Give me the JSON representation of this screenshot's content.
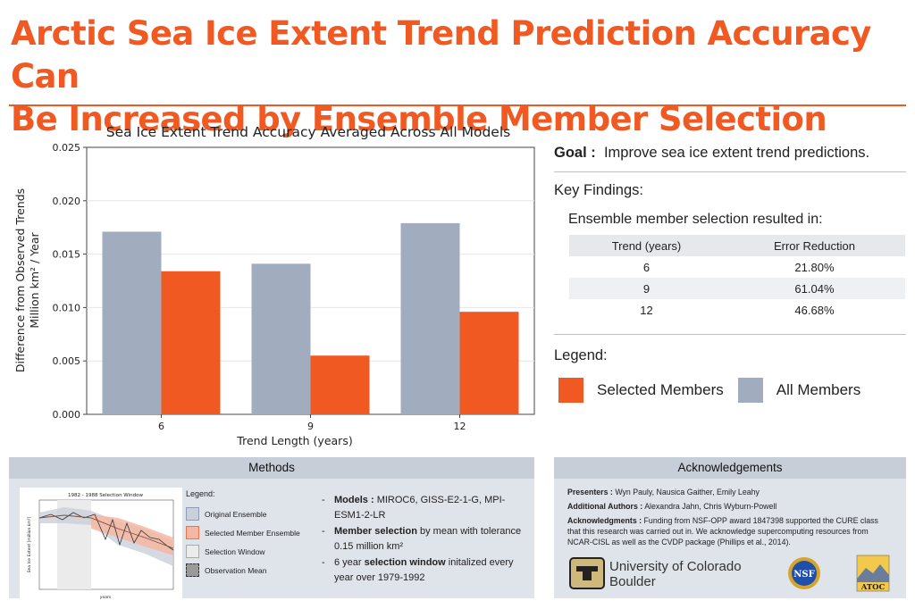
{
  "title_line1": "Arctic Sea Ice Extent Trend Prediction Accuracy Can",
  "title_line2": "Be Increased by Ensemble Member Selection",
  "colors": {
    "accent": "#f05a22",
    "selected_members": "#f05a22",
    "all_members": "#a1adbf",
    "panel_bg": "#dfe3ea",
    "panel_head": "#c8ced8"
  },
  "chart_data": {
    "type": "bar",
    "title": "Sea Ice Extent Trend Accuracy Averaged Across All Models",
    "xlabel": "Trend Length (years)",
    "ylabel_line1": "Difference from Observed Trends",
    "ylabel_line2": "Million km² / Year",
    "categories": [
      "6",
      "9",
      "12"
    ],
    "series": [
      {
        "name": "All Members",
        "color": "#a1adbf",
        "values": [
          0.0171,
          0.0141,
          0.0179
        ]
      },
      {
        "name": "Selected Members",
        "color": "#f05a22",
        "values": [
          0.0134,
          0.0055,
          0.0096
        ]
      }
    ],
    "ylim": [
      0,
      0.025
    ],
    "yticks": [
      "0.000",
      "0.005",
      "0.010",
      "0.015",
      "0.020",
      "0.025"
    ],
    "grid": true
  },
  "goal": {
    "label": "Goal :",
    "text": "Improve sea ice extent trend predictions."
  },
  "key_findings": {
    "title": "Key Findings:",
    "subtitle": "Ensemble member selection resulted in:",
    "headers": [
      "Trend (years)",
      "Error Reduction"
    ],
    "rows": [
      [
        "6",
        "21.80%"
      ],
      [
        "9",
        "61.04%"
      ],
      [
        "12",
        "46.68%"
      ]
    ]
  },
  "legend": {
    "title": "Legend:",
    "selected": "Selected Members",
    "all": "All Members"
  },
  "methods": {
    "title": "Methods",
    "plot_title": "1982 - 1988 Selection Window",
    "plot_ylabel": "Sea Ice Extent [million km²]",
    "plot_xlabel": "years",
    "legend_title": "Legend:",
    "legend_items": [
      "Original Ensemble",
      "Selected Member Ensemble",
      "Selection Window",
      "Observation Mean"
    ],
    "item1_label": "Models :",
    "item1_text": "MIROC6, GISS-E2-1-G, MPI-ESM1-2-LR",
    "item2_label": "Member selection",
    "item2_text": "by mean with tolerance 0.15 million km²",
    "item3_pre": "6 year",
    "item3_label": "selection window",
    "item3_text": "initalized every year over 1979-1992"
  },
  "acknowledgements": {
    "title": "Acknowledgements",
    "presenters_label": "Presenters :",
    "presenters": "Wyn Pauly, Nausica Gaither, Emily Leahy",
    "authors_label": "Additional Authors :",
    "authors": "Alexandra Jahn, Chris Wyburn-Powell",
    "ack_label": "Acknowledgments :",
    "ack_text": "Funding from NSF-OPP award 1847398 supported the CURE class that this research was carried out in. We acknowledge supercomputing resources from NCAR-CISL as well as the CVDP package (Phillips et al., 2014).",
    "cu_line1": "University of Colorado",
    "cu_line2": "Boulder",
    "nsf_text": "NSF",
    "atoc_text": "ATOC"
  }
}
